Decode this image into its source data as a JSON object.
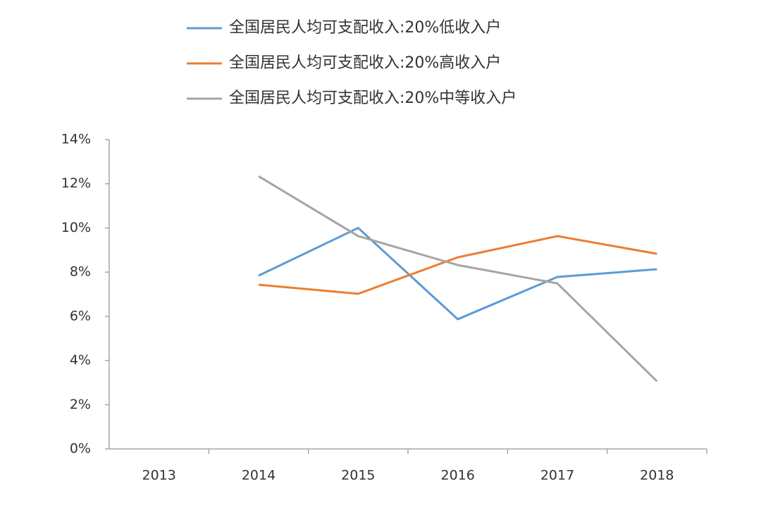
{
  "chart_data": {
    "type": "line",
    "categories": [
      "2013",
      "2014",
      "2015",
      "2016",
      "2017",
      "2018"
    ],
    "series": [
      {
        "name": "全国居民人均可支配收入:20%低收入户",
        "color": "#5b9bd5",
        "values": [
          null,
          7.84,
          10.0,
          5.87,
          7.78,
          8.13
        ]
      },
      {
        "name": "全国居民人均可支配收入:20%高收入户",
        "color": "#ed7d31",
        "values": [
          null,
          7.43,
          7.02,
          8.67,
          9.63,
          8.83
        ]
      },
      {
        "name": "全国居民人均可支配收入:20%中等收入户",
        "color": "#a5a5a5",
        "values": [
          null,
          12.34,
          9.63,
          8.32,
          7.49,
          3.06
        ]
      }
    ],
    "ylim": [
      0,
      14
    ],
    "yticks": [
      {
        "value": 0,
        "label": "0%"
      },
      {
        "value": 2,
        "label": "2%"
      },
      {
        "value": 4,
        "label": "4%"
      },
      {
        "value": 6,
        "label": "6%"
      },
      {
        "value": 8,
        "label": "8%"
      },
      {
        "value": 10,
        "label": "10%"
      },
      {
        "value": 12,
        "label": "12%"
      },
      {
        "value": 14,
        "label": "14%"
      }
    ],
    "grid": false
  }
}
